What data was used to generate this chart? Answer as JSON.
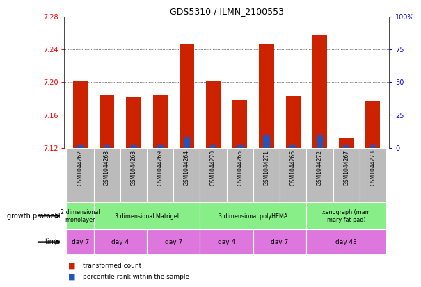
{
  "title": "GDS5310 / ILMN_2100553",
  "samples": [
    "GSM1044262",
    "GSM1044268",
    "GSM1044263",
    "GSM1044269",
    "GSM1044264",
    "GSM1044270",
    "GSM1044265",
    "GSM1044271",
    "GSM1044266",
    "GSM1044272",
    "GSM1044267",
    "GSM1044273"
  ],
  "red_values": [
    7.202,
    7.185,
    7.182,
    7.184,
    7.246,
    7.201,
    7.178,
    7.247,
    7.183,
    7.258,
    7.132,
    7.177
  ],
  "blue_values": [
    2.0,
    2.0,
    2.0,
    2.0,
    8.0,
    2.0,
    2.0,
    10.0,
    2.0,
    10.0,
    2.0,
    2.0
  ],
  "ymin": 7.12,
  "ymax": 7.28,
  "yticks": [
    7.12,
    7.16,
    7.2,
    7.24,
    7.28
  ],
  "y2ticks": [
    0,
    25,
    50,
    75,
    100
  ],
  "y2min": 0,
  "y2max": 100,
  "bar_width": 0.55,
  "red_color": "#cc2200",
  "blue_color": "#2255bb",
  "protocol_color": "#88ee88",
  "time_color": "#dd77dd",
  "sample_bg": "#bbbbbb",
  "protocols": [
    {
      "label": "2 dimensional\nmonolayer",
      "start": 0,
      "end": 1
    },
    {
      "label": "3 dimensional Matrigel",
      "start": 1,
      "end": 5
    },
    {
      "label": "3 dimensional polyHEMA",
      "start": 5,
      "end": 9
    },
    {
      "label": "xenograph (mam\nmary fat pad)",
      "start": 9,
      "end": 12
    }
  ],
  "times": [
    {
      "label": "day 7",
      "start": 0,
      "end": 1
    },
    {
      "label": "day 4",
      "start": 1,
      "end": 3
    },
    {
      "label": "day 7",
      "start": 3,
      "end": 5
    },
    {
      "label": "day 4",
      "start": 5,
      "end": 7
    },
    {
      "label": "day 7",
      "start": 7,
      "end": 9
    },
    {
      "label": "day 43",
      "start": 9,
      "end": 12
    }
  ]
}
